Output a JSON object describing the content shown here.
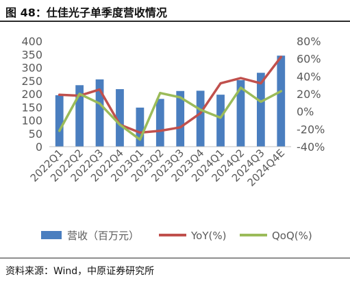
{
  "header": {
    "title": "图 48：仕佳光子单季度营收情况"
  },
  "footer": {
    "source": "资料来源：Wind，中原证券研究所"
  },
  "colors": {
    "bar": "#4a7ebf",
    "yoy": "#c0504d",
    "qoq": "#9bbb59",
    "axis_text": "#595959"
  },
  "chart_data": {
    "type": "bar",
    "title": "",
    "categories": [
      "2022Q1",
      "2022Q2",
      "2022Q3",
      "2022Q4",
      "2023Q1",
      "2023Q2",
      "2023Q3",
      "2023Q4",
      "2024Q1",
      "2024Q2",
      "2024Q3",
      "2024Q4E"
    ],
    "series": [
      {
        "name": "营收（百万元）",
        "type": "bar",
        "axis": "left",
        "values": [
          195,
          233,
          255,
          218,
          148,
          181,
          211,
          212,
          197,
          252,
          280,
          345
        ]
      },
      {
        "name": "YoY(%)",
        "type": "line",
        "axis": "right",
        "values": [
          19,
          18,
          25,
          -15,
          -24,
          -22,
          -18,
          -2,
          32,
          38,
          32,
          62
        ]
      },
      {
        "name": "QoQ(%)",
        "type": "line",
        "axis": "right",
        "values": [
          -22,
          20,
          9,
          -15,
          -32,
          21,
          16,
          2,
          -7,
          27,
          11,
          23
        ]
      }
    ],
    "y_left": {
      "min": 0,
      "max": 400,
      "step": 50,
      "ticks": [
        "0",
        "50",
        "100",
        "150",
        "200",
        "250",
        "300",
        "350",
        "400"
      ]
    },
    "y_right": {
      "min": -40,
      "max": 80,
      "step": 20,
      "ticks": [
        "-40%",
        "-20%",
        "0%",
        "20%",
        "40%",
        "60%",
        "80%"
      ]
    },
    "xlabel": "",
    "ylabel": "",
    "grid": false,
    "legend_position": "bottom"
  }
}
